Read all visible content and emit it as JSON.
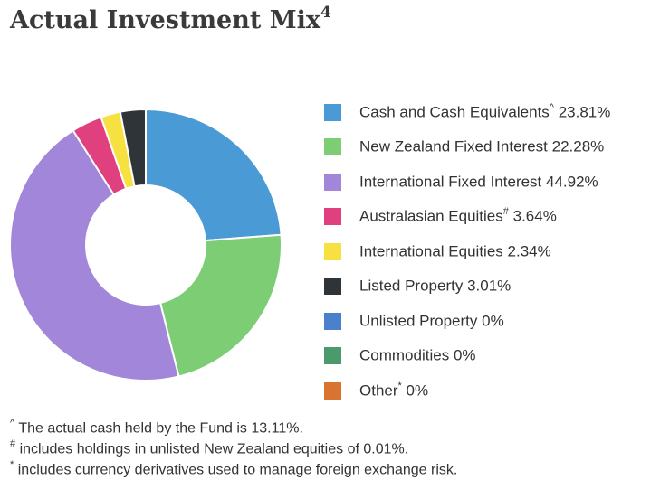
{
  "title": {
    "text": "Actual Investment Mix",
    "sup": "4"
  },
  "chart_data": {
    "type": "pie",
    "subtype": "donut",
    "categories": [
      "Cash and Cash Equivalents",
      "New Zealand Fixed Interest",
      "International Fixed Interest",
      "Australasian Equities",
      "International Equities",
      "Listed Property",
      "Unlisted Property",
      "Commodities",
      "Other"
    ],
    "values": [
      23.81,
      22.28,
      44.92,
      3.64,
      2.34,
      3.01,
      0,
      0,
      0
    ],
    "colors": [
      "#4a9bd5",
      "#7ccd74",
      "#a186d9",
      "#e0407e",
      "#f7e140",
      "#2f3438",
      "#4a80cc",
      "#4a9a6c",
      "#d97332"
    ],
    "legend_placement": "right"
  },
  "legend": [
    {
      "text": "Cash and Cash Equivalents",
      "sup": "^",
      "value": "23.81%"
    },
    {
      "text": "New Zealand Fixed Interest",
      "sup": "",
      "value": "22.28%"
    },
    {
      "text": "International Fixed Interest",
      "sup": "",
      "value": "44.92%"
    },
    {
      "text": "Australasian Equities",
      "sup": "#",
      "value": "3.64%"
    },
    {
      "text": "International Equities",
      "sup": "",
      "value": "2.34%"
    },
    {
      "text": "Listed Property",
      "sup": "",
      "value": "3.01%"
    },
    {
      "text": "Unlisted Property",
      "sup": "",
      "value": "0%"
    },
    {
      "text": "Commodities",
      "sup": "",
      "value": "0%"
    },
    {
      "text": "Other",
      "sup": "*",
      "value": "0%"
    }
  ],
  "notes": [
    {
      "mark": "^",
      "text": "The actual cash held by the Fund is 13.11%."
    },
    {
      "mark": "#",
      "text": "includes holdings in unlisted New Zealand equities of 0.01%."
    },
    {
      "mark": "*",
      "text": "includes currency derivatives used to manage foreign exchange risk."
    }
  ]
}
